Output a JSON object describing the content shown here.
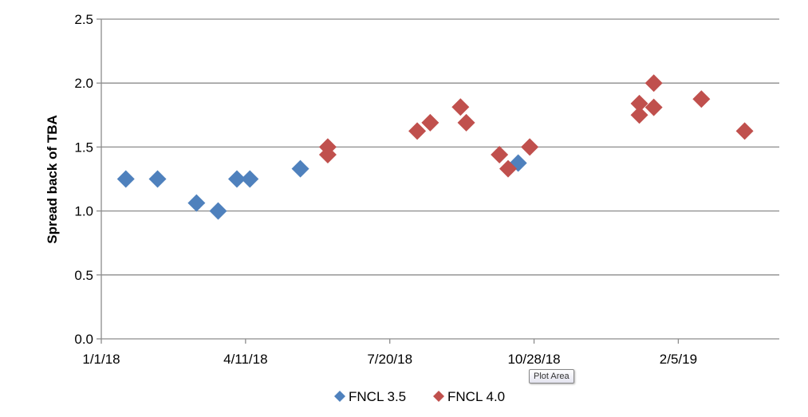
{
  "chart_data": {
    "type": "scatter",
    "title": "",
    "xlabel": "",
    "ylabel": "Spread back of TBA",
    "xlim": [
      "2018-01-01",
      "2019-04-16"
    ],
    "ylim": [
      0,
      2.5
    ],
    "x_ticks": [
      "1/1/18",
      "4/11/18",
      "7/20/18",
      "10/28/18",
      "2/5/19"
    ],
    "x_tick_dates": [
      "2018-01-01",
      "2018-04-11",
      "2018-07-20",
      "2018-10-28",
      "2019-02-05"
    ],
    "y_ticks": [
      "0.0",
      "0.5",
      "1.0",
      "1.5",
      "2.0",
      "2.5"
    ],
    "grid": "horizontal",
    "legend": "bottom",
    "series": [
      {
        "name": "FNCL 3.5",
        "color": "#4F81BD",
        "marker": "diamond",
        "points": [
          {
            "x": "2018-01-18",
            "y": 1.25
          },
          {
            "x": "2018-02-09",
            "y": 1.25
          },
          {
            "x": "2018-03-08",
            "y": 1.0625
          },
          {
            "x": "2018-03-23",
            "y": 1.0
          },
          {
            "x": "2018-04-05",
            "y": 1.25
          },
          {
            "x": "2018-04-14",
            "y": 1.25
          },
          {
            "x": "2018-05-19",
            "y": 1.33
          },
          {
            "x": "2018-10-17",
            "y": 1.375
          }
        ]
      },
      {
        "name": "FNCL 4.0",
        "color": "#C0504D",
        "marker": "diamond",
        "points": [
          {
            "x": "2018-06-07",
            "y": 1.5
          },
          {
            "x": "2018-06-07",
            "y": 1.44
          },
          {
            "x": "2018-08-08",
            "y": 1.625
          },
          {
            "x": "2018-08-17",
            "y": 1.69
          },
          {
            "x": "2018-09-07",
            "y": 1.8125
          },
          {
            "x": "2018-09-11",
            "y": 1.69
          },
          {
            "x": "2018-10-04",
            "y": 1.44
          },
          {
            "x": "2018-10-10",
            "y": 1.33
          },
          {
            "x": "2018-10-25",
            "y": 1.5
          },
          {
            "x": "2019-01-09",
            "y": 1.84
          },
          {
            "x": "2019-01-09",
            "y": 1.75
          },
          {
            "x": "2019-01-19",
            "y": 2.0
          },
          {
            "x": "2019-01-19",
            "y": 1.81
          },
          {
            "x": "2019-02-21",
            "y": 1.875
          },
          {
            "x": "2019-03-23",
            "y": 1.625
          }
        ]
      }
    ]
  },
  "tooltip": "Plot Area"
}
